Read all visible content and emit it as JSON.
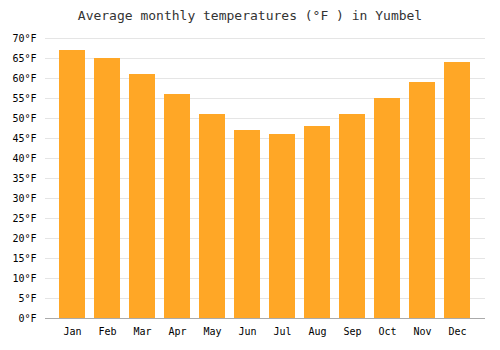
{
  "chart_data": {
    "type": "bar",
    "title": "Average monthly temperatures (°F ) in Yumbel",
    "categories": [
      "Jan",
      "Feb",
      "Mar",
      "Apr",
      "May",
      "Jun",
      "Jul",
      "Aug",
      "Sep",
      "Oct",
      "Nov",
      "Dec"
    ],
    "values": [
      67,
      65,
      61,
      56,
      51,
      47,
      46,
      48,
      51,
      55,
      59,
      64
    ],
    "color": "#FFA726",
    "ylim": [
      0,
      70
    ],
    "yticks": [
      {
        "value": 0,
        "label": "0°F"
      },
      {
        "value": 5,
        "label": "5°F"
      },
      {
        "value": 10,
        "label": "10°F"
      },
      {
        "value": 15,
        "label": "15°F"
      },
      {
        "value": 20,
        "label": "20°F"
      },
      {
        "value": 25,
        "label": "25°F"
      },
      {
        "value": 30,
        "label": "30°F"
      },
      {
        "value": 35,
        "label": "35°F"
      },
      {
        "value": 40,
        "label": "40°F"
      },
      {
        "value": 45,
        "label": "45°F"
      },
      {
        "value": 50,
        "label": "50°F"
      },
      {
        "value": 55,
        "label": "55°F"
      },
      {
        "value": 60,
        "label": "60°F"
      },
      {
        "value": 65,
        "label": "65°F"
      },
      {
        "value": 70,
        "label": "70°F"
      }
    ],
    "grid": true
  }
}
